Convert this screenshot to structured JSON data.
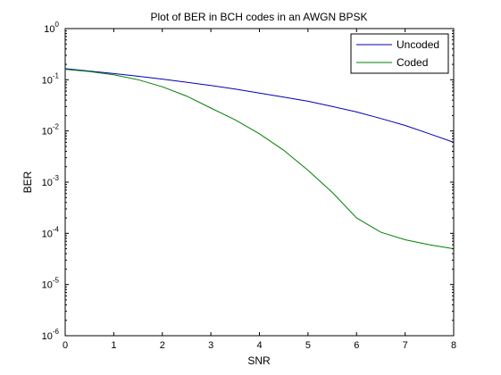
{
  "chart_data": {
    "type": "line",
    "title": "Plot of BER in BCH codes in an AWGN BPSK",
    "xlabel": "SNR",
    "ylabel": "BER",
    "xlim": [
      0,
      8
    ],
    "ylim": [
      1e-06,
      1
    ],
    "yscale": "log",
    "grid": false,
    "legend_position": "top-right",
    "x_ticks": [
      "0",
      "1",
      "2",
      "3",
      "4",
      "5",
      "6",
      "7",
      "8"
    ],
    "y_ticks": [
      {
        "base": "10",
        "exp": "0"
      },
      {
        "base": "10",
        "exp": "-1"
      },
      {
        "base": "10",
        "exp": "-2"
      },
      {
        "base": "10",
        "exp": "-3"
      },
      {
        "base": "10",
        "exp": "-4"
      },
      {
        "base": "10",
        "exp": "-5"
      },
      {
        "base": "10",
        "exp": "-6"
      }
    ],
    "series": [
      {
        "name": "Uncoded",
        "color": "#0000b0",
        "x": [
          0,
          0.5,
          1,
          1.5,
          2,
          2.5,
          3,
          3.5,
          4,
          4.5,
          5,
          5.5,
          6,
          6.5,
          7,
          7.5,
          8
        ],
        "y": [
          0.165,
          0.148,
          0.132,
          0.117,
          0.103,
          0.0895,
          0.0775,
          0.066,
          0.055,
          0.046,
          0.038,
          0.03,
          0.0235,
          0.0175,
          0.0128,
          0.0088,
          0.006
        ]
      },
      {
        "name": "Coded",
        "color": "#008000",
        "x": [
          0,
          0.5,
          1,
          1.5,
          2,
          2.5,
          3,
          3.5,
          4,
          4.5,
          5,
          5.5,
          6,
          6.5,
          7,
          7.5,
          8
        ],
        "y": [
          0.16,
          0.145,
          0.125,
          0.1,
          0.073,
          0.048,
          0.028,
          0.0165,
          0.0088,
          0.0042,
          0.0017,
          0.00063,
          0.0002,
          0.000105,
          7.5e-05,
          6e-05,
          5e-05
        ]
      }
    ]
  }
}
